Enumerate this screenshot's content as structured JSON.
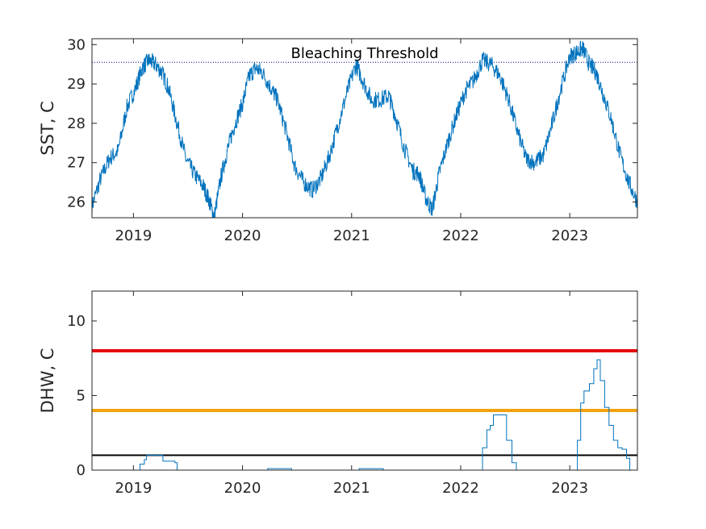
{
  "chart_data": [
    {
      "type": "line",
      "title": "",
      "xlabel": "",
      "ylabel": "SST, C",
      "xlim": [
        2018.62,
        2023.62
      ],
      "ylim": [
        25.6,
        30.15
      ],
      "xticks": [
        2019,
        2020,
        2021,
        2022,
        2023
      ],
      "xtick_labels": [
        "2019",
        "2020",
        "2021",
        "2022",
        "2023"
      ],
      "yticks": [
        26,
        27,
        28,
        29,
        30
      ],
      "ytick_labels": [
        "26",
        "27",
        "28",
        "29",
        "30"
      ],
      "grid": false,
      "line_color": "#0072BD",
      "threshold": {
        "value": 29.55,
        "label": "Bleaching Threshold",
        "style": "dotted",
        "color": "#00008B"
      },
      "series": [
        {
          "x": [
            2018.62,
            2018.7,
            2018.78,
            2018.86,
            2018.94,
            2019.02,
            2019.08,
            2019.14,
            2019.2,
            2019.26,
            2019.32,
            2019.4,
            2019.48,
            2019.56,
            2019.64,
            2019.7,
            2019.74,
            2019.8,
            2019.86,
            2019.92,
            2020.0,
            2020.06,
            2020.12,
            2020.18,
            2020.26,
            2020.32,
            2020.4,
            2020.48,
            2020.56,
            2020.64,
            2020.72,
            2020.8,
            2020.88,
            2020.96,
            2021.04,
            2021.1,
            2021.18,
            2021.26,
            2021.34,
            2021.4,
            2021.48,
            2021.56,
            2021.62,
            2021.68,
            2021.74,
            2021.8,
            2021.88,
            2021.96,
            2022.04,
            2022.12,
            2022.2,
            2022.28,
            2022.36,
            2022.44,
            2022.52,
            2022.6,
            2022.68,
            2022.76,
            2022.84,
            2022.92,
            2023.0,
            2023.06,
            2023.12,
            2023.18,
            2023.24,
            2023.3,
            2023.38,
            2023.46,
            2023.54,
            2023.62
          ],
          "y": [
            25.9,
            26.6,
            27.1,
            27.3,
            28.4,
            28.9,
            29.4,
            29.6,
            29.5,
            29.3,
            28.9,
            28.0,
            27.1,
            26.7,
            26.4,
            26.0,
            25.6,
            26.6,
            27.3,
            27.9,
            28.5,
            29.2,
            29.4,
            29.3,
            28.9,
            28.6,
            27.8,
            26.9,
            26.5,
            26.3,
            26.6,
            27.2,
            28.0,
            28.8,
            29.5,
            29.1,
            28.6,
            28.6,
            28.7,
            28.2,
            27.4,
            26.8,
            26.7,
            26.1,
            25.8,
            26.7,
            27.5,
            28.2,
            28.8,
            29.1,
            29.6,
            29.5,
            29.2,
            28.6,
            27.8,
            27.1,
            27.0,
            27.2,
            28.0,
            28.9,
            29.7,
            29.8,
            29.9,
            29.5,
            29.3,
            28.8,
            28.1,
            27.2,
            26.5,
            26.0
          ]
        }
      ]
    },
    {
      "type": "line",
      "title": "",
      "xlabel": "",
      "ylabel": "DHW, C",
      "xlim": [
        2018.62,
        2023.62
      ],
      "ylim": [
        0,
        12
      ],
      "xticks": [
        2019,
        2020,
        2021,
        2022,
        2023
      ],
      "xtick_labels": [
        "2019",
        "2020",
        "2021",
        "2022",
        "2023"
      ],
      "yticks": [
        0,
        5,
        10
      ],
      "ytick_labels": [
        "0",
        "5",
        "10"
      ],
      "grid": false,
      "line_color": "#0072BD",
      "reference_lines": [
        {
          "value": 8,
          "color": "#E3080A"
        },
        {
          "value": 4,
          "color": "#F2A20F"
        },
        {
          "value": 1,
          "color": "#000000"
        }
      ],
      "series": [
        {
          "x": [
            2018.62,
            2019.04,
            2019.06,
            2019.1,
            2019.12,
            2019.24,
            2019.27,
            2019.38,
            2019.4,
            2020.22,
            2020.23,
            2020.44,
            2020.45,
            2021.06,
            2021.07,
            2021.28,
            2021.29,
            2022.17,
            2022.2,
            2022.24,
            2022.27,
            2022.3,
            2022.38,
            2022.42,
            2022.47,
            2022.51,
            2023.04,
            2023.07,
            2023.1,
            2023.13,
            2023.18,
            2023.22,
            2023.25,
            2023.28,
            2023.32,
            2023.36,
            2023.4,
            2023.44,
            2023.48,
            2023.52,
            2023.55,
            2023.62
          ],
          "y": [
            0,
            0,
            0.4,
            0.7,
            1.0,
            1.0,
            0.6,
            0.5,
            0,
            0,
            0.1,
            0.1,
            0,
            0,
            0.1,
            0.1,
            0,
            0,
            1.5,
            2.7,
            3.0,
            3.7,
            3.7,
            2.0,
            0.5,
            0,
            0,
            2.0,
            4.5,
            5.3,
            5.8,
            6.8,
            7.4,
            6.0,
            4.2,
            3.0,
            2.0,
            1.5,
            1.4,
            0.8,
            0,
            0
          ]
        }
      ]
    }
  ]
}
